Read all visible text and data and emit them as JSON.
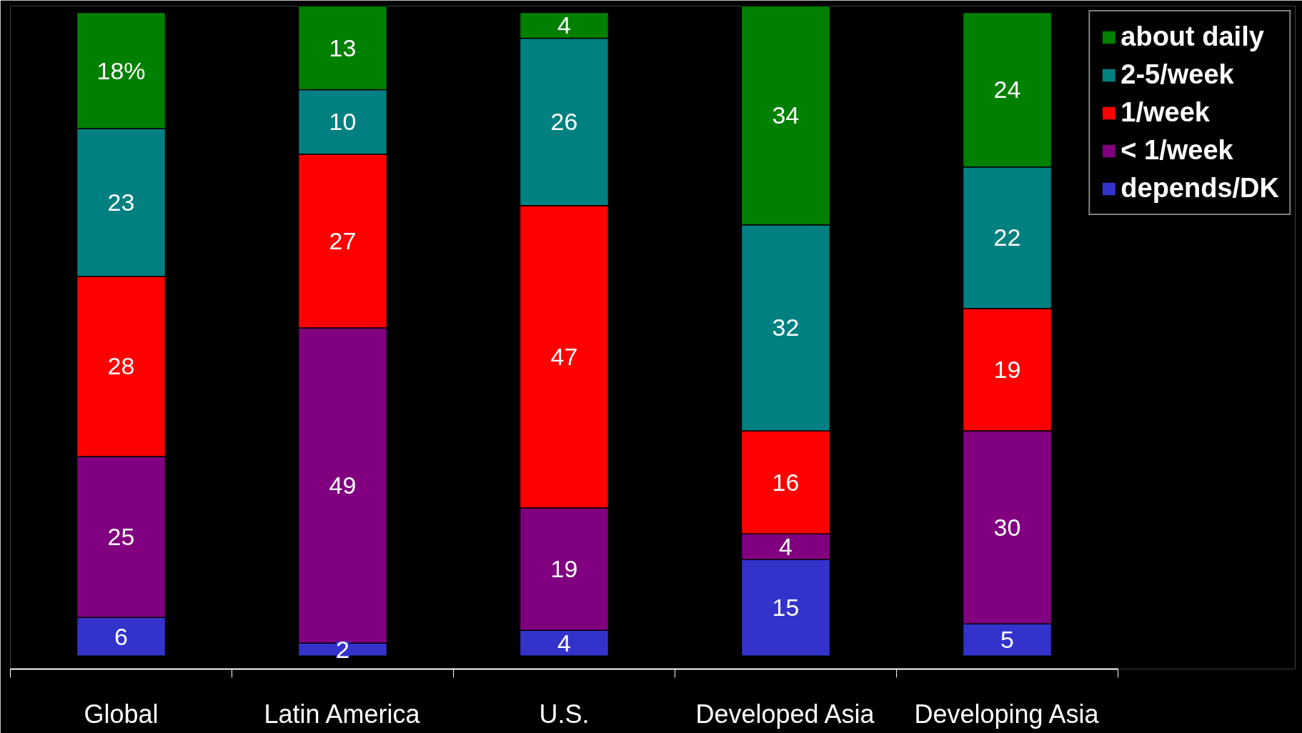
{
  "chart_data": {
    "type": "bar",
    "stacked": true,
    "categories": [
      "Global",
      "Latin America",
      "U.S.",
      "Developed Asia",
      "Developing Asia"
    ],
    "series": [
      {
        "name": "depends/DK",
        "color": "#3333cc",
        "values": [
          6,
          2,
          4,
          15,
          5
        ],
        "value_labels": [
          "6",
          "2",
          "4",
          "15",
          "5"
        ]
      },
      {
        "name": "< 1/week",
        "color": "#800080",
        "values": [
          25,
          49,
          19,
          4,
          30
        ],
        "value_labels": [
          "25",
          "49",
          "19",
          "4",
          "30"
        ]
      },
      {
        "name": "1/week",
        "color": "#ff0000",
        "values": [
          28,
          27,
          47,
          16,
          19
        ],
        "value_labels": [
          "28",
          "27",
          "47",
          "16",
          "19"
        ]
      },
      {
        "name": "2-5/week",
        "color": "#008080",
        "values": [
          23,
          10,
          26,
          32,
          22
        ],
        "value_labels": [
          "23",
          "10",
          "26",
          "32",
          "22"
        ]
      },
      {
        "name": "about daily",
        "color": "#008000",
        "values": [
          18,
          13,
          4,
          34,
          24
        ],
        "value_labels": [
          "18%",
          "13",
          "4",
          "34",
          "24"
        ]
      }
    ],
    "legend": "right",
    "grid": false
  }
}
